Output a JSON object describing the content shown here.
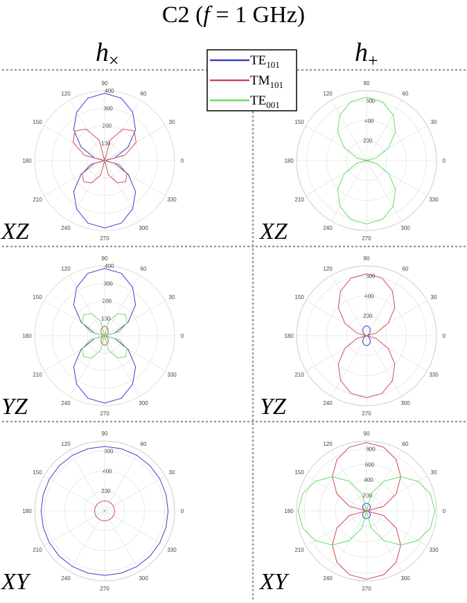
{
  "title": [
    "C2 (",
    "f",
    " = 1 GHz)"
  ],
  "columns": [
    {
      "main": "h",
      "sub": "×"
    },
    {
      "main": "h",
      "sub": "+"
    }
  ],
  "legend": [
    {
      "name": "TE",
      "sub": "101",
      "color": "#3c3cc8"
    },
    {
      "name": "TM",
      "sub": "101",
      "color": "#d04a5a"
    },
    {
      "name": "TE",
      "sub": "001",
      "color": "#66dd66"
    }
  ],
  "chart_data": [
    {
      "type": "polar",
      "label": "XZ",
      "rlim": [
        0,
        400
      ],
      "rticks": [
        100,
        200,
        300,
        400
      ],
      "thetaticks": [
        0,
        30,
        60,
        90,
        120,
        150,
        180,
        210,
        240,
        270,
        300,
        330
      ],
      "theta": [
        0,
        15,
        30,
        45,
        60,
        75,
        90,
        105,
        120,
        135,
        150,
        165,
        180,
        195,
        210,
        225,
        240,
        255,
        270,
        285,
        300,
        315,
        330,
        345
      ],
      "series": [
        {
          "values": [
            0,
            60,
            155,
            250,
            320,
            370,
            385,
            370,
            320,
            250,
            155,
            60,
            0,
            60,
            155,
            250,
            320,
            370,
            385,
            370,
            320,
            250,
            155,
            60
          ]
        },
        {
          "values": [
            0,
            120,
            208,
            240,
            208,
            120,
            0,
            120,
            208,
            240,
            208,
            120,
            0,
            85,
            147,
            170,
            147,
            85,
            0,
            85,
            147,
            170,
            147,
            85
          ]
        },
        {
          "values": [
            5,
            5,
            5,
            5,
            5,
            5,
            5,
            5,
            5,
            5,
            5,
            5,
            5,
            5,
            5,
            5,
            5,
            5,
            5,
            5,
            5,
            5,
            5,
            5
          ]
        }
      ]
    },
    {
      "type": "polar",
      "label": "XZ",
      "rlim": [
        0,
        700
      ],
      "rticks": [
        200,
        400,
        600
      ],
      "thetaticks": [
        0,
        30,
        60,
        90,
        120,
        150,
        180,
        210,
        240,
        270,
        300,
        330
      ],
      "theta": [
        0,
        15,
        30,
        45,
        60,
        75,
        90,
        105,
        120,
        135,
        150,
        165,
        180,
        195,
        210,
        225,
        240,
        255,
        270,
        285,
        300,
        315,
        330,
        345
      ],
      "series": [
        {
          "values": [
            3,
            3,
            3,
            3,
            3,
            3,
            3,
            3,
            3,
            3,
            3,
            3,
            3,
            3,
            3,
            3,
            3,
            3,
            3,
            3,
            3,
            3,
            3,
            3
          ]
        },
        {
          "values": [
            3,
            3,
            3,
            3,
            3,
            3,
            3,
            3,
            3,
            3,
            3,
            3,
            3,
            3,
            3,
            3,
            3,
            3,
            3,
            3,
            3,
            3,
            3,
            3
          ]
        },
        {
          "values": [
            0,
            100,
            255,
            410,
            530,
            610,
            635,
            610,
            530,
            410,
            255,
            100,
            0,
            100,
            255,
            410,
            530,
            610,
            635,
            610,
            530,
            410,
            255,
            100
          ]
        }
      ]
    },
    {
      "type": "polar",
      "label": "YZ",
      "rlim": [
        0,
        400
      ],
      "rticks": [
        100,
        200,
        300,
        400
      ],
      "thetaticks": [
        0,
        30,
        60,
        90,
        120,
        150,
        180,
        210,
        240,
        270,
        300,
        330
      ],
      "theta": [
        0,
        15,
        30,
        45,
        60,
        75,
        90,
        105,
        120,
        135,
        150,
        165,
        180,
        195,
        210,
        225,
        240,
        255,
        270,
        285,
        300,
        315,
        330,
        345
      ],
      "series": [
        {
          "values": [
            0,
            60,
            155,
            250,
            320,
            370,
            385,
            370,
            320,
            250,
            155,
            60,
            0,
            60,
            155,
            250,
            320,
            370,
            385,
            370,
            320,
            250,
            155,
            60
          ]
        },
        {
          "values": [
            0,
            4,
            14,
            28,
            41,
            51,
            55,
            51,
            41,
            28,
            14,
            4,
            0,
            4,
            14,
            28,
            41,
            51,
            55,
            51,
            41,
            28,
            14,
            4
          ]
        },
        {
          "values": [
            0,
            85,
            147,
            170,
            147,
            85,
            0,
            85,
            147,
            170,
            147,
            85,
            0,
            85,
            147,
            170,
            147,
            85,
            0,
            85,
            147,
            170,
            147,
            85
          ]
        }
      ]
    },
    {
      "type": "polar",
      "label": "YZ",
      "rlim": [
        0,
        700
      ],
      "rticks": [
        200,
        400,
        600
      ],
      "thetaticks": [
        0,
        30,
        60,
        90,
        120,
        150,
        180,
        210,
        240,
        270,
        300,
        330
      ],
      "theta": [
        0,
        15,
        30,
        45,
        60,
        75,
        90,
        105,
        120,
        135,
        150,
        165,
        180,
        195,
        210,
        225,
        240,
        255,
        270,
        285,
        300,
        315,
        330,
        345
      ],
      "series": [
        {
          "values": [
            0,
            7,
            25,
            50,
            75,
            93,
            100,
            93,
            75,
            50,
            25,
            7,
            0,
            7,
            25,
            50,
            75,
            93,
            100,
            93,
            75,
            50,
            25,
            7
          ]
        },
        {
          "values": [
            0,
            98,
            250,
            400,
            518,
            598,
            620,
            598,
            518,
            400,
            250,
            98,
            0,
            98,
            250,
            400,
            518,
            598,
            620,
            598,
            518,
            400,
            250,
            98
          ]
        },
        {
          "values": [
            3,
            3,
            3,
            3,
            3,
            3,
            3,
            3,
            3,
            3,
            3,
            3,
            3,
            3,
            3,
            3,
            3,
            3,
            3,
            3,
            3,
            3,
            3,
            3
          ]
        }
      ]
    },
    {
      "type": "polar",
      "label": "XY",
      "rlim": [
        0,
        700
      ],
      "rticks": [
        200,
        400,
        600
      ],
      "thetaticks": [
        0,
        30,
        60,
        90,
        120,
        150,
        180,
        210,
        240,
        270,
        300,
        330
      ],
      "theta": [
        0,
        15,
        30,
        45,
        60,
        75,
        90,
        105,
        120,
        135,
        150,
        165,
        180,
        195,
        210,
        225,
        240,
        255,
        270,
        285,
        300,
        315,
        330,
        345
      ],
      "series": [
        {
          "values": [
            635,
            636,
            638,
            641,
            643,
            645,
            645,
            645,
            643,
            641,
            638,
            636,
            635,
            636,
            638,
            641,
            643,
            645,
            645,
            645,
            643,
            641,
            638,
            636
          ]
        },
        {
          "values": [
            100,
            100,
            100,
            100,
            100,
            100,
            100,
            100,
            100,
            100,
            100,
            100,
            100,
            100,
            100,
            100,
            100,
            100,
            100,
            100,
            100,
            100,
            100,
            100
          ]
        },
        {
          "values": [
            5,
            5,
            5,
            5,
            5,
            5,
            5,
            5,
            5,
            5,
            5,
            5,
            5,
            5,
            5,
            5,
            5,
            5,
            5,
            5,
            5,
            5,
            5,
            5
          ]
        }
      ]
    },
    {
      "type": "polar",
      "label": "XY",
      "rlim": [
        0,
        900
      ],
      "rticks": [
        200,
        400,
        600,
        800
      ],
      "thetaticks": [
        0,
        30,
        60,
        90,
        120,
        150,
        180,
        210,
        240,
        270,
        300,
        330
      ],
      "theta": [
        0,
        15,
        30,
        45,
        60,
        75,
        90,
        105,
        120,
        135,
        150,
        165,
        180,
        195,
        210,
        225,
        240,
        255,
        270,
        285,
        300,
        315,
        330,
        345
      ],
      "series": [
        {
          "values": [
            0,
            26,
            50,
            71,
            87,
            97,
            100,
            97,
            87,
            71,
            50,
            26,
            0,
            26,
            50,
            71,
            87,
            97,
            100,
            97,
            87,
            71,
            50,
            26
          ]
        },
        {
          "values": [
            0,
            228,
            440,
            622,
            762,
            850,
            880,
            850,
            762,
            622,
            440,
            228,
            0,
            228,
            440,
            622,
            762,
            850,
            880,
            850,
            762,
            622,
            440,
            228
          ]
        },
        {
          "values": [
            880,
            850,
            762,
            622,
            440,
            228,
            0,
            228,
            440,
            622,
            762,
            850,
            880,
            850,
            762,
            622,
            440,
            228,
            0,
            228,
            440,
            622,
            762,
            850
          ]
        }
      ]
    }
  ]
}
